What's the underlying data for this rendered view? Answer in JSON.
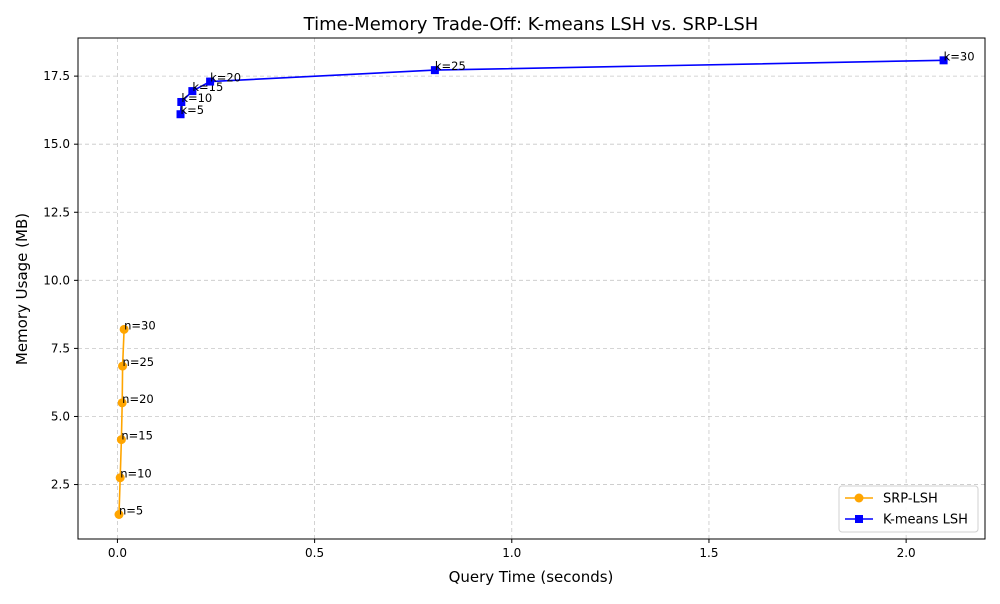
{
  "chart_data": {
    "type": "line",
    "title": "Time-Memory Trade-Off: K-means LSH vs. SRP-LSH",
    "xlabel": "Query Time (seconds)",
    "ylabel": "Memory Usage (MB)",
    "xlim": [
      -0.1,
      2.2
    ],
    "ylim": [
      0.5,
      18.9
    ],
    "xticks": [
      0.0,
      0.5,
      1.0,
      1.5,
      2.0
    ],
    "xtick_labels": [
      "0.0",
      "0.5",
      "1.0",
      "1.5",
      "2.0"
    ],
    "yticks": [
      2.5,
      5.0,
      7.5,
      10.0,
      12.5,
      15.0,
      17.5
    ],
    "ytick_labels": [
      "2.5",
      "5.0",
      "7.5",
      "10.0",
      "12.5",
      "15.0",
      "17.5"
    ],
    "grid": true,
    "legend_position": "lower-right",
    "series": [
      {
        "name": "SRP-LSH",
        "color": "#ffa500",
        "marker": "circle",
        "x": [
          0.004,
          0.007,
          0.01,
          0.012,
          0.013,
          0.017
        ],
        "y": [
          1.4,
          2.75,
          4.15,
          5.5,
          6.85,
          8.2
        ],
        "labels": [
          "n=5",
          "n=10",
          "n=15",
          "n=20",
          "n=25",
          "n=30"
        ]
      },
      {
        "name": "K-means LSH",
        "color": "#0000ff",
        "marker": "square",
        "x": [
          0.16,
          0.162,
          0.19,
          0.235,
          0.805,
          2.095
        ],
        "y": [
          16.1,
          16.55,
          16.95,
          17.3,
          17.72,
          18.08
        ],
        "labels": [
          "k=5",
          "k=10",
          "k=15",
          "k=20",
          "k=25",
          "k=30"
        ]
      }
    ]
  }
}
